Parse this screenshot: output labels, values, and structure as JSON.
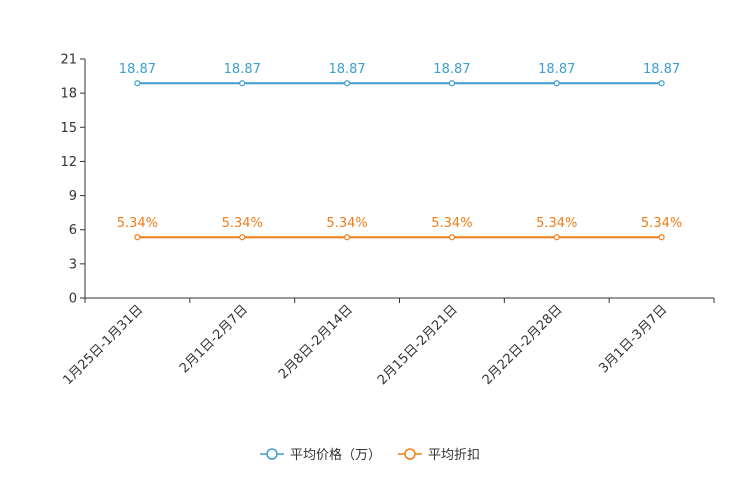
{
  "chart_data": {
    "type": "line",
    "categories": [
      "1月25日-1月31日",
      "2月1日-2月7日",
      "2月8日-2月14日",
      "2月15日-2月21日",
      "2月22日-2月28日",
      "3月1日-3月7日"
    ],
    "series": [
      {
        "name": "平均价格（万）",
        "values": [
          18.87,
          18.87,
          18.87,
          18.87,
          18.87,
          18.87
        ],
        "labels": [
          "18.87",
          "18.87",
          "18.87",
          "18.87",
          "18.87",
          "18.87"
        ],
        "color": "#3c9ed3"
      },
      {
        "name": "平均折扣",
        "values": [
          5.34,
          5.34,
          5.34,
          5.34,
          5.34,
          5.34
        ],
        "labels": [
          "5.34%",
          "5.34%",
          "5.34%",
          "5.34%",
          "5.34%",
          "5.34%"
        ],
        "color": "#f07d1a"
      }
    ],
    "yticks": [
      0,
      3,
      6,
      9,
      12,
      15,
      18,
      21
    ],
    "ylim": [
      0,
      21
    ],
    "grid": false,
    "legend_position": "bottom-center",
    "title": "",
    "xlabel": "",
    "ylabel": ""
  }
}
